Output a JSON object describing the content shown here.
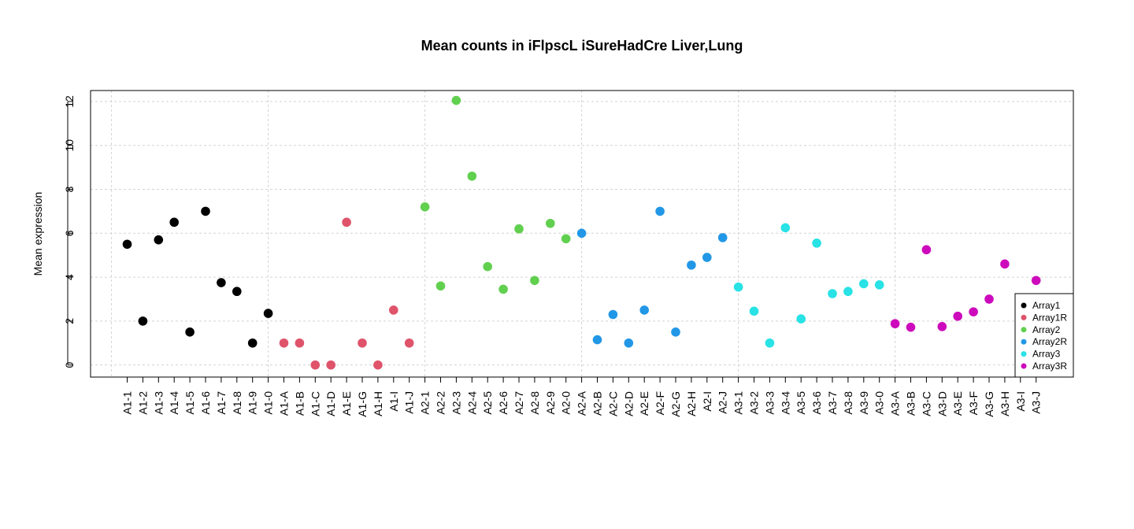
{
  "chart_data": {
    "type": "scatter",
    "title": "Mean counts in iFlpscL iSureHadCre Liver,Lung",
    "xlabel": "",
    "ylabel": "Mean expression",
    "ylim": [
      -0.55,
      12.5
    ],
    "yticks": [
      0,
      2,
      4,
      6,
      8,
      10,
      12
    ],
    "grid": true,
    "legend_position": "bottom-right",
    "categories": [
      "A1-1",
      "A1-2",
      "A1-3",
      "A1-4",
      "A1-5",
      "A1-6",
      "A1-7",
      "A1-8",
      "A1-9",
      "A1-0",
      "A1-A",
      "A1-B",
      "A1-C",
      "A1-D",
      "A1-E",
      "A1-G",
      "A1-H",
      "A1-I",
      "A1-J",
      "A2-1",
      "A2-2",
      "A2-3",
      "A2-4",
      "A2-5",
      "A2-6",
      "A2-7",
      "A2-8",
      "A2-9",
      "A2-0",
      "A2-A",
      "A2-B",
      "A2-C",
      "A2-D",
      "A2-E",
      "A2-F",
      "A2-G",
      "A2-H",
      "A2-I",
      "A2-J",
      "A3-1",
      "A3-2",
      "A3-3",
      "A3-4",
      "A3-5",
      "A3-6",
      "A3-7",
      "A3-8",
      "A3-9",
      "A3-0",
      "A3-A",
      "A3-B",
      "A3-C",
      "A3-D",
      "A3-E",
      "A3-F",
      "A3-G",
      "A3-H",
      "A3-I",
      "A3-J"
    ],
    "values": [
      5.5,
      2.0,
      5.7,
      6.5,
      1.5,
      7.0,
      3.75,
      3.35,
      1.0,
      2.35,
      1.0,
      1.0,
      0.0,
      0.0,
      6.5,
      1.0,
      0.0,
      2.5,
      1.0,
      7.2,
      3.6,
      12.05,
      8.6,
      4.48,
      3.45,
      6.2,
      3.85,
      6.45,
      5.75,
      6.0,
      1.15,
      2.3,
      1.0,
      2.5,
      7.0,
      1.5,
      4.55,
      4.9,
      5.8,
      3.55,
      2.45,
      1.0,
      6.25,
      2.1,
      5.55,
      3.25,
      3.35,
      3.7,
      3.65,
      1.88,
      1.72,
      5.25,
      1.75,
      2.22,
      2.42,
      3.0,
      4.6,
      null,
      3.85
    ],
    "groups": [
      "Array1",
      "Array1",
      "Array1",
      "Array1",
      "Array1",
      "Array1",
      "Array1",
      "Array1",
      "Array1",
      "Array1",
      "Array1R",
      "Array1R",
      "Array1R",
      "Array1R",
      "Array1R",
      "Array1R",
      "Array1R",
      "Array1R",
      "Array1R",
      "Array2",
      "Array2",
      "Array2",
      "Array2",
      "Array2",
      "Array2",
      "Array2",
      "Array2",
      "Array2",
      "Array2",
      "Array2R",
      "Array2R",
      "Array2R",
      "Array2R",
      "Array2R",
      "Array2R",
      "Array2R",
      "Array2R",
      "Array2R",
      "Array2R",
      "Array3",
      "Array3",
      "Array3",
      "Array3",
      "Array3",
      "Array3",
      "Array3",
      "Array3",
      "Array3",
      "Array3",
      "Array3R",
      "Array3R",
      "Array3R",
      "Array3R",
      "Array3R",
      "Array3R",
      "Array3R",
      "Array3R",
      "Array3R",
      "Array3R"
    ],
    "legend": [
      {
        "name": "Array1",
        "color": "#000000"
      },
      {
        "name": "Array1R",
        "color": "#DF536B"
      },
      {
        "name": "Array2",
        "color": "#61D04F"
      },
      {
        "name": "Array2R",
        "color": "#2297E6"
      },
      {
        "name": "Array3",
        "color": "#28E2E5"
      },
      {
        "name": "Array3R",
        "color": "#CD0BBC"
      }
    ]
  }
}
